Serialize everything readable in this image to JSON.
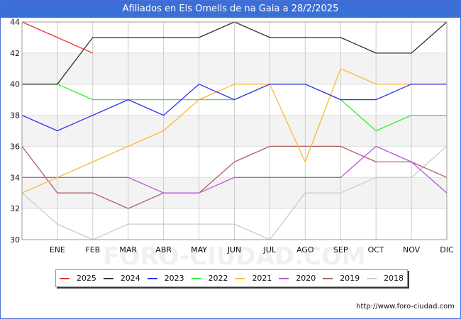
{
  "page": {
    "title": "Afiliados en Els Omells de na Gaia a 28/2/2025",
    "watermark": "FORO-CIUDAD.COM",
    "source": "http://www.foro-ciudad.com"
  },
  "chart_data": {
    "type": "line",
    "title": "Afiliados en Els Omells de na Gaia a 28/2/2025",
    "xlabel": "",
    "ylabel": "",
    "categories": [
      "",
      "ENE",
      "FEB",
      "MAR",
      "ABR",
      "MAY",
      "JUN",
      "JUL",
      "AGO",
      "SEP",
      "OCT",
      "NOV",
      "DIC"
    ],
    "ylim": [
      30,
      44
    ],
    "yticks": [
      30,
      32,
      34,
      36,
      38,
      40,
      42,
      44
    ],
    "legend_position": "bottom",
    "series": [
      {
        "name": "2025",
        "color": "#ee3333",
        "values": [
          44,
          43,
          42,
          null,
          null,
          null,
          null,
          null,
          null,
          null,
          null,
          null,
          null
        ]
      },
      {
        "name": "2024",
        "color": "#333333",
        "values": [
          40,
          40,
          43,
          43,
          43,
          43,
          44,
          43,
          43,
          43,
          42,
          42,
          44
        ]
      },
      {
        "name": "2023",
        "color": "#3333ee",
        "values": [
          38,
          37,
          38,
          39,
          38,
          40,
          39,
          40,
          40,
          39,
          39,
          40,
          40
        ]
      },
      {
        "name": "2022",
        "color": "#33ee33",
        "values": [
          40,
          40,
          39,
          39,
          39,
          39,
          39,
          40,
          40,
          39,
          37,
          38,
          38
        ]
      },
      {
        "name": "2021",
        "color": "#ffb733",
        "values": [
          33,
          34,
          35,
          36,
          37,
          39,
          40,
          40,
          35,
          41,
          40,
          40,
          40
        ]
      },
      {
        "name": "2020",
        "color": "#bb55dd",
        "values": [
          34,
          34,
          34,
          34,
          33,
          33,
          34,
          34,
          34,
          34,
          36,
          35,
          33
        ]
      },
      {
        "name": "2019",
        "color": "#b06060",
        "values": [
          36,
          33,
          33,
          32,
          33,
          33,
          35,
          36,
          36,
          36,
          35,
          35,
          34
        ]
      },
      {
        "name": "2018",
        "color": "#cccccc",
        "values": [
          33,
          31,
          30,
          31,
          31,
          31,
          31,
          30,
          33,
          33,
          34,
          34,
          36
        ]
      }
    ]
  }
}
